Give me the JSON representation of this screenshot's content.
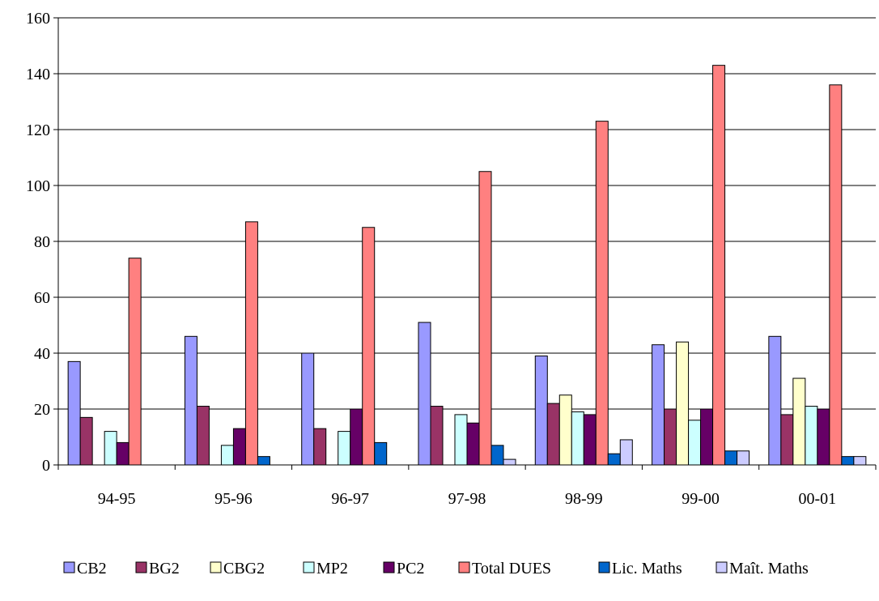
{
  "chart_data": {
    "type": "bar",
    "title": "",
    "xlabel": "",
    "ylabel": "",
    "ylim": [
      0,
      160
    ],
    "yticks": [
      0,
      20,
      40,
      60,
      80,
      100,
      120,
      140,
      160
    ],
    "grid": true,
    "legend_position": "bottom",
    "categories": [
      "94-95",
      "95-96",
      "96-97",
      "97-98",
      "98-99",
      "99-00",
      "00-01"
    ],
    "series": [
      {
        "name": "CB2",
        "color": "#9999ff",
        "values": [
          37,
          46,
          40,
          51,
          39,
          43,
          46
        ]
      },
      {
        "name": "BG2",
        "color": "#993366",
        "values": [
          17,
          21,
          13,
          21,
          22,
          20,
          18
        ]
      },
      {
        "name": "CBG2",
        "color": "#ffffcc",
        "values": [
          0,
          0,
          0,
          0,
          25,
          44,
          31
        ]
      },
      {
        "name": "MP2",
        "color": "#ccffff",
        "values": [
          12,
          7,
          12,
          18,
          19,
          16,
          21
        ]
      },
      {
        "name": "PC2",
        "color": "#660066",
        "values": [
          8,
          13,
          20,
          15,
          18,
          20,
          20
        ]
      },
      {
        "name": "Total DUES",
        "color": "#ff8080",
        "values": [
          74,
          87,
          85,
          105,
          123,
          143,
          136
        ]
      },
      {
        "name": "Lic. Maths",
        "color": "#0066cc",
        "values": [
          0,
          3,
          8,
          7,
          4,
          5,
          3
        ]
      },
      {
        "name": "Maît. Maths",
        "color": "#ccccff",
        "values": [
          0,
          0,
          0,
          2,
          9,
          5,
          3
        ]
      }
    ]
  }
}
